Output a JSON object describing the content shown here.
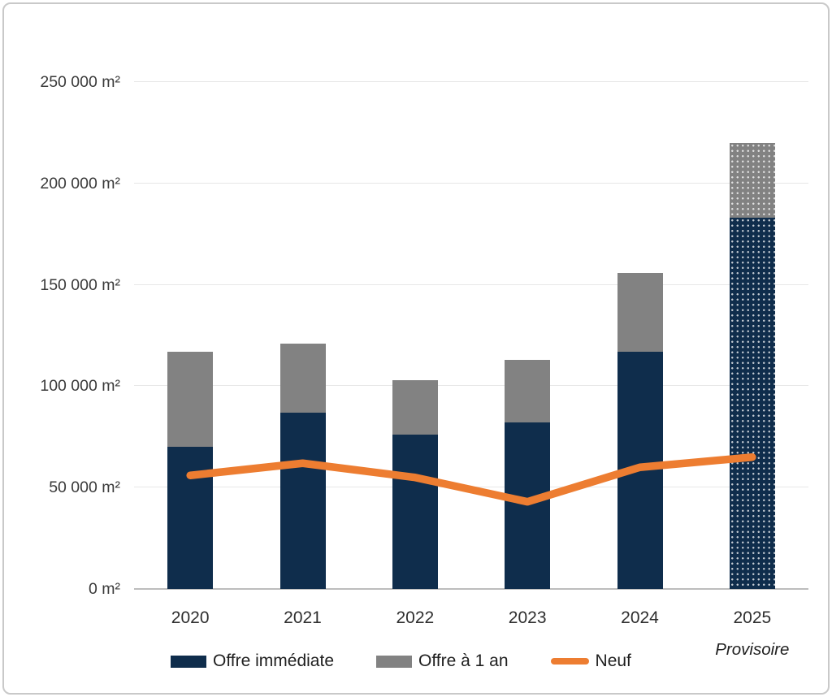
{
  "chart_data": {
    "type": "bar",
    "subtype": "stacked-column-with-line",
    "title": "",
    "unit": "m²",
    "categories": [
      "2020",
      "2021",
      "2022",
      "2023",
      "2024",
      "2025"
    ],
    "series": [
      {
        "name": "Offre immédiate",
        "type": "bar",
        "color": "#0f2d4c",
        "values": [
          70000,
          87000,
          76000,
          82000,
          117000,
          183000
        ]
      },
      {
        "name": "Offre à 1 an",
        "type": "bar",
        "color": "#828282",
        "values": [
          47000,
          34000,
          27000,
          31000,
          39000,
          37000
        ]
      },
      {
        "name": "Neuf",
        "type": "line",
        "color": "#ed7d31",
        "values": [
          56000,
          62000,
          55000,
          43000,
          60000,
          65000
        ]
      }
    ],
    "stacked_totals": [
      117000,
      121000,
      103000,
      113000,
      156000,
      220000
    ],
    "y_axis": {
      "min": 0,
      "max": 250000,
      "tick_interval": 50000,
      "tick_values": [
        0,
        50000,
        100000,
        150000,
        200000,
        250000
      ],
      "tick_labels": [
        "0 m²",
        "50 000 m²",
        "100 000 m²",
        "150 000 m²",
        "200 000 m²",
        "250 000 m²"
      ]
    },
    "annotations": {
      "provisional_category": "2025",
      "provisional_index": 5,
      "label": "Provisoire"
    },
    "legend_position": "bottom",
    "grid": true,
    "colors": {
      "grid": "#e7e7e7",
      "axis_line": "#bdbdbd",
      "text": "#3a3a3a",
      "pattern_dots": "rgba(255,255,255,0.75)"
    }
  }
}
